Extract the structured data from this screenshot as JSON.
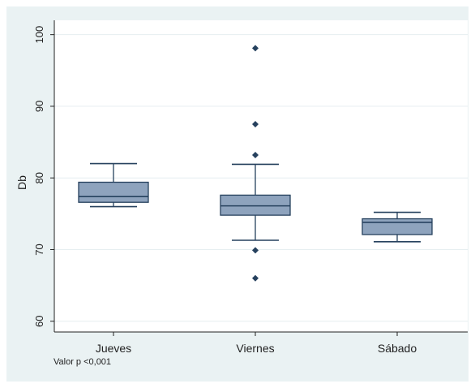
{
  "chart_data": {
    "type": "box",
    "title": "",
    "xlabel": "",
    "ylabel": "Db",
    "ylim": [
      58.5,
      102
    ],
    "yticks": [
      60,
      70,
      80,
      90,
      100
    ],
    "grid": true,
    "legend": "none",
    "categories": [
      "Jueves",
      "Viernes",
      "Sábado"
    ],
    "boxes": [
      {
        "name": "Jueves",
        "whisker_low": 76.0,
        "q1": 76.6,
        "median": 77.4,
        "q3": 79.4,
        "whisker_high": 82.0,
        "outliers": []
      },
      {
        "name": "Viernes",
        "whisker_low": 71.3,
        "q1": 74.8,
        "median": 76.1,
        "q3": 77.6,
        "whisker_high": 81.9,
        "outliers": [
          98.1,
          87.5,
          83.2,
          69.9,
          66.0
        ]
      },
      {
        "name": "Sábado",
        "whisker_low": 71.1,
        "q1": 72.1,
        "median": 73.8,
        "q3": 74.3,
        "whisker_high": 75.2,
        "outliers": []
      }
    ],
    "note": "Valor p <0,001",
    "colors": {
      "box_fill": "#8ea3bd",
      "box_stroke": "#26415e",
      "plot_bg": "#ffffff",
      "outer_bg": "#eaf2f3",
      "grid": "#e6eef0"
    }
  }
}
